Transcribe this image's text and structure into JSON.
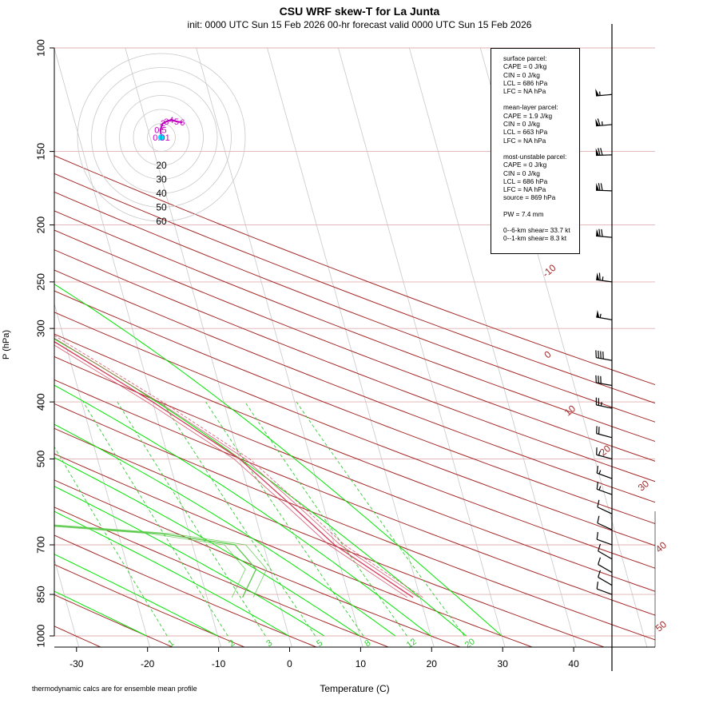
{
  "title": "CSU WRF skew-T for La Junta",
  "subtitle": "init: 0000 UTC Sun 15 Feb 2026     00-hr forecast valid 0000 UTC Sun 15 Feb 2026",
  "footnote": "thermodynamic calcs are for ensemble mean profile",
  "colors": {
    "temperature": "#d43c5a",
    "dewpoint": "#58c848",
    "dry_adiabat": "#a52a2a",
    "moist_adiabat": "#00e600",
    "mixing_ratio": "#33cc33",
    "isotherm": "#c8c8c8",
    "hodograph": "#c000c0",
    "hodograph_start": "#00e5ff"
  },
  "chart_data": {
    "type": "line",
    "title": "CSU WRF skew-T for La Junta",
    "xlabel": "Temperature (C)",
    "ylabel": "P (hPa)",
    "x_ticks": [
      -30,
      -20,
      -10,
      0,
      10,
      20,
      30,
      40
    ],
    "y_ticks": [
      100,
      150,
      200,
      250,
      300,
      400,
      500,
      700,
      850,
      1000
    ],
    "dry_adiabat_labels": [
      "-10",
      "0",
      "10",
      "20",
      "30",
      "40",
      "50"
    ],
    "mixing_ratio_labels": [
      "1",
      "2",
      "3",
      "5",
      "8",
      "12",
      "20"
    ],
    "hodograph_ring_labels": [
      "20",
      "30",
      "40",
      "50",
      "60"
    ],
    "hodograph_point_labels": [
      "0.01",
      "0.5",
      "1",
      "2",
      "3",
      "4",
      "5",
      "6"
    ],
    "series": [
      {
        "name": "temperature",
        "points": [
          [
            19,
            860
          ],
          [
            10,
            700
          ],
          [
            5.5,
            600
          ],
          [
            0,
            500
          ],
          [
            -10,
            400
          ],
          [
            -24,
            300
          ],
          [
            -38,
            245
          ],
          [
            -44,
            215
          ],
          [
            -45,
            180
          ],
          [
            -50,
            150
          ],
          [
            -56,
            115
          ]
        ]
      },
      {
        "name": "dewpoint",
        "points": [
          [
            -5,
            860
          ],
          [
            -2,
            770
          ],
          [
            -4,
            700
          ],
          [
            -14,
            670
          ],
          [
            -43,
            630
          ],
          [
            -40,
            580
          ],
          [
            -37,
            510
          ],
          [
            -34,
            450
          ],
          [
            -35,
            400
          ],
          [
            -43,
            300
          ],
          [
            -55,
            250
          ],
          [
            -61,
            200
          ]
        ]
      }
    ],
    "wind_barbs_kt": [
      {
        "p": 120,
        "dir": 265,
        "spd": 55
      },
      {
        "p": 135,
        "dir": 265,
        "spd": 65
      },
      {
        "p": 152,
        "dir": 268,
        "spd": 70
      },
      {
        "p": 175,
        "dir": 272,
        "spd": 70
      },
      {
        "p": 210,
        "dir": 275,
        "spd": 70
      },
      {
        "p": 250,
        "dir": 278,
        "spd": 65
      },
      {
        "p": 290,
        "dir": 280,
        "spd": 55
      },
      {
        "p": 340,
        "dir": 280,
        "spd": 40
      },
      {
        "p": 375,
        "dir": 280,
        "spd": 30
      },
      {
        "p": 410,
        "dir": 282,
        "spd": 25
      },
      {
        "p": 460,
        "dir": 285,
        "spd": 20
      },
      {
        "p": 500,
        "dir": 285,
        "spd": 15
      },
      {
        "p": 540,
        "dir": 290,
        "spd": 15
      },
      {
        "p": 575,
        "dir": 290,
        "spd": 15
      },
      {
        "p": 620,
        "dir": 295,
        "spd": 10
      },
      {
        "p": 660,
        "dir": 295,
        "spd": 10
      },
      {
        "p": 700,
        "dir": 290,
        "spd": 10
      },
      {
        "p": 740,
        "dir": 300,
        "spd": 10
      },
      {
        "p": 780,
        "dir": 300,
        "spd": 10
      },
      {
        "p": 820,
        "dir": 300,
        "spd": 10
      },
      {
        "p": 850,
        "dir": 290,
        "spd": 10
      }
    ],
    "hodograph_kt": [
      [
        0,
        0
      ],
      [
        -1,
        -9
      ],
      [
        0,
        -13
      ],
      [
        2,
        -17
      ],
      [
        6,
        -19
      ],
      [
        12,
        -21
      ],
      [
        18,
        -19
      ],
      [
        25,
        -18
      ]
    ]
  },
  "legend": {
    "blocks": [
      {
        "lines": [
          "surface parcel:",
          "CAPE = 0 J/kg",
          "CIN = 0 J/kg",
          "LCL = 686 hPa",
          "LFC = NA hPa"
        ]
      },
      {
        "lines": [
          "mean-layer parcel:",
          "CAPE = 1.9 J/kg",
          "CIN = 0 J/kg",
          "LCL = 663 hPa",
          "LFC = NA hPa"
        ]
      },
      {
        "lines": [
          "most-unstable parcel:",
          "CAPE = 0 J/kg",
          "CIN = 0 J/kg",
          "LCL = 686 hPa",
          "LFC = NA hPa",
          "source = 869 hPa"
        ]
      },
      {
        "lines": [
          "PW =  7.4 mm"
        ]
      },
      {
        "lines": [
          "0--6-km shear= 33.7 kt",
          "0--1-km shear= 8.3 kt"
        ]
      }
    ]
  }
}
